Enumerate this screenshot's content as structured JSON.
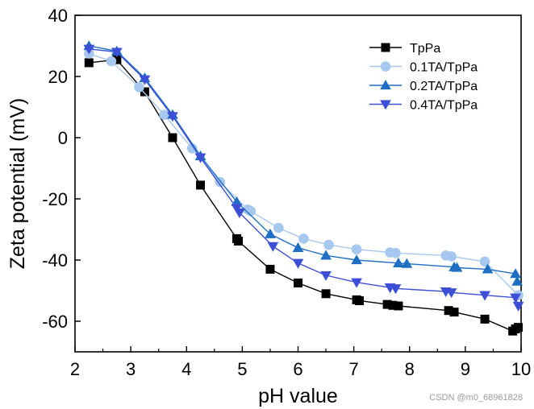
{
  "chart_data": {
    "type": "line",
    "title": "",
    "xlabel": "pH value",
    "ylabel": "Zeta potential (mV)",
    "xlim": [
      2,
      10
    ],
    "ylim": [
      -70,
      40
    ],
    "xticks": [
      2,
      3,
      4,
      5,
      6,
      7,
      8,
      9,
      10
    ],
    "yticks": [
      -60,
      -40,
      -20,
      0,
      20,
      40
    ],
    "grid": false,
    "legend_position": "top-right",
    "series": [
      {
        "name": "TpPa",
        "color": "#000000",
        "marker": "square",
        "points": [
          [
            2.25,
            24.5
          ],
          [
            2.75,
            25.5
          ],
          [
            3.25,
            15
          ],
          [
            3.75,
            0
          ],
          [
            4.25,
            -15.5
          ],
          [
            4.9,
            -33
          ],
          [
            4.93,
            -33.8
          ],
          [
            5.5,
            -43
          ],
          [
            6.0,
            -47.5
          ],
          [
            6.5,
            -51
          ],
          [
            7.05,
            -53
          ],
          [
            7.1,
            -53.3
          ],
          [
            7.6,
            -54.5
          ],
          [
            7.7,
            -54.8
          ],
          [
            7.8,
            -55
          ],
          [
            8.7,
            -56.5
          ],
          [
            8.8,
            -57
          ],
          [
            9.35,
            -59.3
          ],
          [
            9.85,
            -63.2
          ],
          [
            9.9,
            -62.5
          ],
          [
            9.95,
            -62
          ]
        ]
      },
      {
        "name": "0.1TA/TpPa",
        "color": "#a6c8ee",
        "marker": "circle",
        "points": [
          [
            2.25,
            27.5
          ],
          [
            2.65,
            25
          ],
          [
            3.15,
            16.5
          ],
          [
            3.6,
            7.5
          ],
          [
            4.1,
            -3.5
          ],
          [
            4.6,
            -14.5
          ],
          [
            5.1,
            -23.5
          ],
          [
            5.15,
            -24
          ],
          [
            5.65,
            -29.5
          ],
          [
            6.1,
            -33
          ],
          [
            6.55,
            -35
          ],
          [
            7.05,
            -36.5
          ],
          [
            7.65,
            -37.5
          ],
          [
            7.75,
            -37.7
          ],
          [
            8.65,
            -38.5
          ],
          [
            8.75,
            -38.8
          ],
          [
            9.35,
            -40.5
          ],
          [
            9.95,
            -51.5
          ]
        ]
      },
      {
        "name": "0.2TA/TpPa",
        "color": "#1e6fc3",
        "marker": "triangle-up",
        "points": [
          [
            2.25,
            30
          ],
          [
            2.75,
            28.3
          ],
          [
            3.25,
            19.5
          ],
          [
            3.75,
            7.5
          ],
          [
            4.25,
            -6
          ],
          [
            4.9,
            -21
          ],
          [
            5.5,
            -31.5
          ],
          [
            6.0,
            -36
          ],
          [
            6.5,
            -38.5
          ],
          [
            7.05,
            -40
          ],
          [
            7.8,
            -41
          ],
          [
            7.95,
            -41.2
          ],
          [
            8.8,
            -42.3
          ],
          [
            8.85,
            -42.5
          ],
          [
            9.4,
            -43
          ],
          [
            9.9,
            -44.5
          ],
          [
            9.93,
            -47
          ]
        ]
      },
      {
        "name": "0.4TA/TpPa",
        "color": "#3d4fd6",
        "marker": "triangle-down",
        "points": [
          [
            2.25,
            29
          ],
          [
            2.75,
            28
          ],
          [
            3.25,
            19
          ],
          [
            3.75,
            7
          ],
          [
            4.25,
            -6.5
          ],
          [
            4.9,
            -23
          ],
          [
            4.95,
            -24.5
          ],
          [
            5.55,
            -35.5
          ],
          [
            6.0,
            -41
          ],
          [
            6.5,
            -45
          ],
          [
            7.05,
            -47.3
          ],
          [
            7.65,
            -49
          ],
          [
            7.75,
            -49.3
          ],
          [
            8.65,
            -50.3
          ],
          [
            8.75,
            -50.6
          ],
          [
            9.35,
            -51.5
          ],
          [
            9.9,
            -52.3
          ],
          [
            9.95,
            -55
          ]
        ]
      }
    ]
  },
  "watermark": "CSDN @m0_68961828"
}
